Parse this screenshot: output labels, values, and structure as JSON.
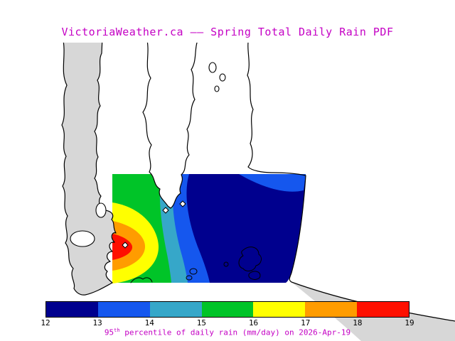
{
  "title": "VictoriaWeather.ca —— Spring Total Daily Rain PDF",
  "caption": {
    "percentile_base": "95",
    "percentile_sup": "th",
    "rest": " percentile of daily rain (mm/day) on 2026-Apr-19"
  },
  "theme": {
    "accent_magenta": "#c400c4",
    "tick_text": "#000000"
  },
  "map": {
    "land_color": "#d7d7d7",
    "water_color": "#ffffff",
    "coast_color": "#000000"
  },
  "colorbar": {
    "min": 12,
    "max": 19,
    "ticks": [
      "12",
      "13",
      "14",
      "15",
      "16",
      "17",
      "18",
      "19"
    ],
    "colors": [
      "#00008e",
      "#1557ee",
      "#36a7c9",
      "#00c428",
      "#ffff00",
      "#ff9c00",
      "#fe1000"
    ]
  },
  "chart_data": {
    "type": "heatmap",
    "title": "VictoriaWeather.ca —— Spring Total Daily Rain PDF",
    "variable": "95th percentile of daily rain",
    "units": "mm/day",
    "valid_date": "2026-Apr-19",
    "region": "Greater Victoria coastal area (gray = land, white = water, colored rectangle = analysis domain)",
    "legend_position": "bottom",
    "value_range": [
      12,
      19
    ],
    "colorbar_ticks": [
      12,
      13,
      14,
      15,
      16,
      17,
      18,
      19
    ],
    "contour_bands": [
      {
        "range": [
          12,
          13
        ],
        "color": "#00008e",
        "location": "large eastern/central minimum region"
      },
      {
        "range": [
          13,
          14
        ],
        "color": "#1557ee",
        "location": "band west of the minimum plus a lobe along the northeast edge"
      },
      {
        "range": [
          14,
          15
        ],
        "color": "#36a7c9",
        "location": "narrow north-south band"
      },
      {
        "range": [
          15,
          16
        ],
        "color": "#00c428",
        "location": "band toward the northwest of the domain"
      },
      {
        "range": [
          16,
          17
        ],
        "color": "#ffff00",
        "location": "lobe against the western edge"
      },
      {
        "range": [
          17,
          18
        ],
        "color": "#ff9c00",
        "location": "smaller lobe at the western edge"
      },
      {
        "range": [
          18,
          19
        ],
        "color": "#fe1000",
        "location": "maximum core at the western edge"
      }
    ],
    "gradient_direction": "daily rain increases from ~12 mm/day in the east (dark blue) to ~19 mm/day in the west (red core)",
    "station_markers": 3
  }
}
